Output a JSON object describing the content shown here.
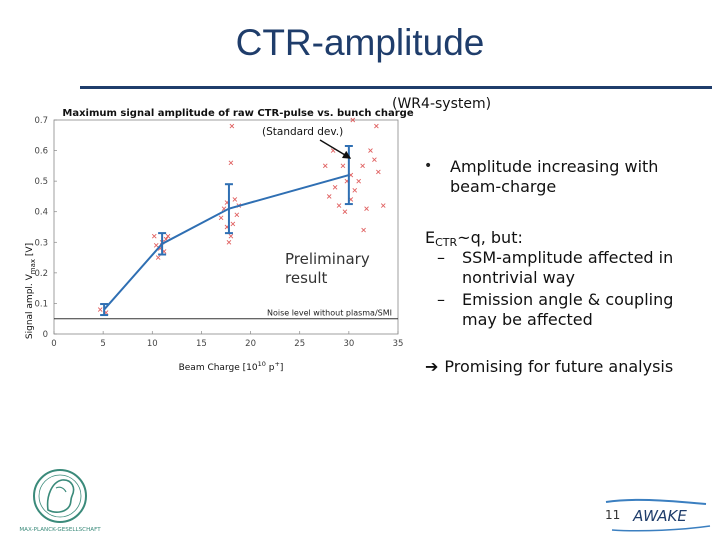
{
  "slide": {
    "title": "CTR-amplitude",
    "wr4_label": "(WR4-system)",
    "std_dev_label": "(Standard dev.)",
    "preliminary_label": "Preliminary\nresult",
    "bullets": {
      "main": "Amplitude increasing with beam-charge",
      "ectr_prefix": "E",
      "ectr_sub": "CTR",
      "ectr_rest": "~q,   but:",
      "sub1": "SSM-amplitude affected in nontrivial way",
      "sub2": "Emission angle & coupling may be affected",
      "dash": "–"
    },
    "conclusion": "Promising for future analysis",
    "conclusion_arrow": "➔",
    "page_number": "11",
    "awake_logo_text": "AWAKE",
    "mpg_logo_text": "MAX-PLANCK-GESELLSCHAFT"
  },
  "colors": {
    "title": "#1f3d6b",
    "line": "#2f6fb3",
    "scatter": "#e06060",
    "noise": "#333333"
  },
  "chart_data": {
    "type": "scatter",
    "title": "Maximum signal amplitude of raw CTR-pulse vs. bunch charge",
    "xlabel_main": "Beam Charge [10",
    "xlabel_sup": "10",
    "xlabel_rest": " p",
    "xlabel_sup2": "+",
    "xlabel_end": "]",
    "ylabel_main": "Signal ampl. V",
    "ylabel_sub": "max",
    "ylabel_end": " [V]",
    "xlim": [
      0,
      35
    ],
    "ylim": [
      0,
      0.7
    ],
    "xticks": [
      "0",
      "5",
      "10",
      "15",
      "20",
      "25",
      "30",
      "35"
    ],
    "yticks": [
      "0",
      "0.1",
      "0.2",
      "0.3",
      "0.4",
      "0.5",
      "0.6",
      "0.7"
    ],
    "noise_level": 0.05,
    "noise_label": "Noise level without plasma/SMI",
    "mean_series": {
      "x": [
        5.1,
        11.0,
        17.8,
        30.0
      ],
      "y": [
        0.08,
        0.295,
        0.41,
        0.52
      ],
      "err": [
        0.018,
        0.035,
        0.08,
        0.095
      ]
    },
    "scatter_points": [
      {
        "x": 4.7,
        "y": 0.08
      },
      {
        "x": 5.3,
        "y": 0.07
      },
      {
        "x": 10.2,
        "y": 0.32
      },
      {
        "x": 10.6,
        "y": 0.25
      },
      {
        "x": 10.8,
        "y": 0.28
      },
      {
        "x": 11.0,
        "y": 0.3
      },
      {
        "x": 11.2,
        "y": 0.27
      },
      {
        "x": 11.4,
        "y": 0.31
      },
      {
        "x": 11.6,
        "y": 0.32
      },
      {
        "x": 10.4,
        "y": 0.29
      },
      {
        "x": 17.0,
        "y": 0.38
      },
      {
        "x": 17.3,
        "y": 0.41
      },
      {
        "x": 17.6,
        "y": 0.43
      },
      {
        "x": 17.8,
        "y": 0.3
      },
      {
        "x": 18.0,
        "y": 0.32
      },
      {
        "x": 18.2,
        "y": 0.36
      },
      {
        "x": 18.4,
        "y": 0.44
      },
      {
        "x": 18.6,
        "y": 0.39
      },
      {
        "x": 18.0,
        "y": 0.56
      },
      {
        "x": 17.6,
        "y": 0.35
      },
      {
        "x": 18.8,
        "y": 0.42
      },
      {
        "x": 18.1,
        "y": 0.68
      },
      {
        "x": 28.0,
        "y": 0.45
      },
      {
        "x": 28.6,
        "y": 0.48
      },
      {
        "x": 29.0,
        "y": 0.42
      },
      {
        "x": 29.4,
        "y": 0.55
      },
      {
        "x": 29.8,
        "y": 0.5
      },
      {
        "x": 30.2,
        "y": 0.52
      },
      {
        "x": 30.6,
        "y": 0.47
      },
      {
        "x": 31.0,
        "y": 0.5
      },
      {
        "x": 31.4,
        "y": 0.55
      },
      {
        "x": 31.8,
        "y": 0.41
      },
      {
        "x": 32.2,
        "y": 0.6
      },
      {
        "x": 32.6,
        "y": 0.57
      },
      {
        "x": 33.0,
        "y": 0.53
      },
      {
        "x": 30.4,
        "y": 0.7
      },
      {
        "x": 32.8,
        "y": 0.68
      },
      {
        "x": 29.6,
        "y": 0.4
      },
      {
        "x": 27.6,
        "y": 0.55
      },
      {
        "x": 28.4,
        "y": 0.6
      },
      {
        "x": 30.2,
        "y": 0.44
      },
      {
        "x": 31.5,
        "y": 0.34
      },
      {
        "x": 33.5,
        "y": 0.42
      }
    ]
  }
}
